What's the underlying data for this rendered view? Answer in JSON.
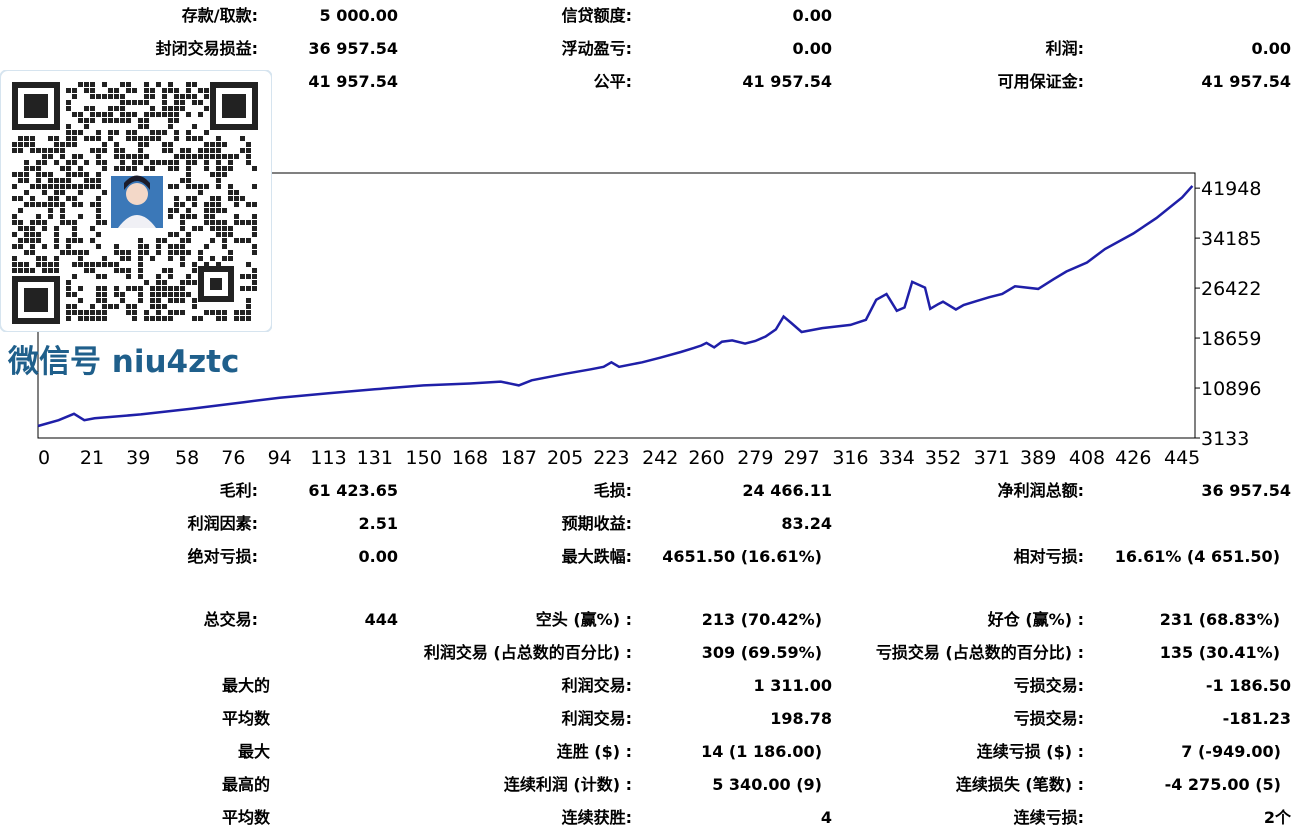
{
  "summary": {
    "deposit_label": "存款/取款:",
    "deposit_value": "5 000.00",
    "credit_label": "信贷额度:",
    "credit_value": "0.00",
    "closed_pl_label": "封闭交易损益:",
    "closed_pl_value": "36 957.54",
    "floating_label": "浮动盈亏:",
    "floating_value": "0.00",
    "profit_label": "利润:",
    "profit_value": "0.00",
    "balance_value": "41 957.54",
    "equity_label": "公平:",
    "equity_value": "41 957.54",
    "free_margin_label": "可用保证金:",
    "free_margin_value": "41 957.54"
  },
  "stats": {
    "gross_profit_label": "毛利:",
    "gross_profit_value": "61 423.65",
    "gross_loss_label": "毛损:",
    "gross_loss_value": "24 466.11",
    "net_profit_label": "净利润总额:",
    "net_profit_value": "36 957.54",
    "profit_factor_label": "利润因素:",
    "profit_factor_value": "2.51",
    "expected_payoff_label": "预期收益:",
    "expected_payoff_value": "83.24",
    "abs_dd_label": "绝对亏损:",
    "abs_dd_value": "0.00",
    "max_dd_label": "最大跌幅:",
    "max_dd_value": "4651.50 (16.61%)",
    "rel_dd_label": "相对亏损:",
    "rel_dd_value": "16.61% (4 651.50)",
    "total_trades_label": "总交易:",
    "total_trades_value": "444",
    "short_label": "空头 (赢%) :",
    "short_value": "213 (70.42%)",
    "long_label": "好仓 (赢%) :",
    "long_value": "231 (68.83%)",
    "profit_trades_label": "利润交易 (占总数的百分比) :",
    "profit_trades_value": "309 (69.59%)",
    "loss_trades_label": "亏损交易 (占总数的百分比) :",
    "loss_trades_value": "135 (30.41%)",
    "largest_label": "最大的",
    "largest_profit_label": "利润交易:",
    "largest_profit_value": "1 311.00",
    "largest_loss_label": "亏损交易:",
    "largest_loss_value": "-1 186.50",
    "average_label": "平均数",
    "avg_profit_label": "利润交易:",
    "avg_profit_value": "198.78",
    "avg_loss_label": "亏损交易:",
    "avg_loss_value": "-181.23",
    "maximum_label": "最大",
    "max_wins_label": "连胜 ($) :",
    "max_wins_value": "14 (1 186.00)",
    "max_losses_label": "连续亏损 ($) :",
    "max_losses_value": "7 (-949.00)",
    "maximal_label": "最高的",
    "max_cons_profit_label": "连续利润 (计数) :",
    "max_cons_profit_value": "5 340.00 (9)",
    "max_cons_loss_label": "连续损失 (笔数) :",
    "max_cons_loss_value": "-4 275.00 (5)",
    "average2_label": "平均数",
    "avg_wins_label": "连续获胜:",
    "avg_wins_value": "4",
    "avg_losses_label": "连续亏损:",
    "avg_losses_value": "2个"
  },
  "watermark": {
    "text": "微信号 niu4ztc"
  },
  "colors": {
    "line": "#1f1fa8",
    "grid": "#000000",
    "watermark": "#1f5f8b"
  },
  "chart_data": {
    "type": "line",
    "x_ticks": [
      0,
      21,
      39,
      58,
      76,
      94,
      113,
      131,
      150,
      168,
      187,
      205,
      223,
      242,
      260,
      279,
      297,
      316,
      334,
      352,
      371,
      389,
      408,
      426,
      445
    ],
    "y_ticks": [
      3133,
      10896,
      18659,
      26422,
      34185,
      41948
    ],
    "xlim": [
      0,
      450
    ],
    "ylim": [
      3133,
      44300
    ],
    "x": [
      0,
      8,
      14,
      18,
      22,
      40,
      60,
      80,
      94,
      113,
      131,
      140,
      150,
      168,
      180,
      187,
      192,
      205,
      215,
      220,
      223,
      226,
      235,
      242,
      250,
      255,
      258,
      260,
      263,
      266,
      270,
      275,
      279,
      283,
      287,
      290,
      293,
      297,
      305,
      316,
      322,
      326,
      330,
      334,
      337,
      340,
      345,
      347,
      350,
      352,
      357,
      360,
      365,
      370,
      375,
      380,
      389,
      395,
      400,
      408,
      415,
      426,
      435,
      445,
      449
    ],
    "y": [
      5000,
      5900,
      6900,
      5900,
      6200,
      6800,
      7700,
      8700,
      9400,
      10100,
      10700,
      11000,
      11300,
      11600,
      11900,
      11300,
      12100,
      13100,
      13800,
      14200,
      14900,
      14200,
      14900,
      15600,
      16500,
      17100,
      17500,
      17900,
      17200,
      18100,
      18300,
      17800,
      18200,
      18900,
      20000,
      22000,
      21000,
      19600,
      20200,
      20700,
      21500,
      24600,
      25500,
      22900,
      23400,
      27400,
      26500,
      23200,
      23900,
      24300,
      23100,
      23800,
      24400,
      25000,
      25500,
      26700,
      26300,
      27800,
      29000,
      30400,
      32500,
      34900,
      37300,
      40500,
      42300
    ]
  }
}
